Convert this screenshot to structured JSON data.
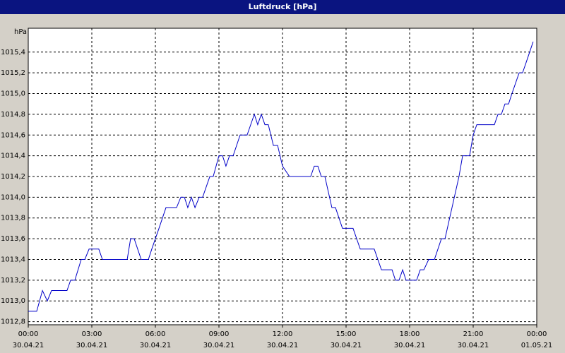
{
  "chart_data": {
    "type": "line",
    "title": "Luftdruck [hPa]",
    "y_label": "hPa",
    "xlim": [
      0,
      24
    ],
    "xticks": [
      {
        "value": 0,
        "label": "00:00"
      },
      {
        "value": 3,
        "label": "03:00"
      },
      {
        "value": 6,
        "label": "06:00"
      },
      {
        "value": 9,
        "label": "09:00"
      },
      {
        "value": 12,
        "label": "12:00"
      },
      {
        "value": 15,
        "label": "15:00"
      },
      {
        "value": 18,
        "label": "18:00"
      },
      {
        "value": 21,
        "label": "21:00"
      },
      {
        "value": 24,
        "label": "00:00"
      }
    ],
    "xtick_dates": [
      "30.04.21",
      "30.04.21",
      "30.04.21",
      "30.04.21",
      "30.04.21",
      "30.04.21",
      "30.04.21",
      "30.04.21",
      "01.05.21"
    ],
    "ylim": [
      1012.77,
      1015.63
    ],
    "yticks": [
      {
        "value": 1012.8,
        "label": "1012,8"
      },
      {
        "value": 1013.0,
        "label": "1013,0"
      },
      {
        "value": 1013.2,
        "label": "1013,2"
      },
      {
        "value": 1013.4,
        "label": "1013,4"
      },
      {
        "value": 1013.6,
        "label": "1013,6"
      },
      {
        "value": 1013.8,
        "label": "1013,8"
      },
      {
        "value": 1014.0,
        "label": "1014,0"
      },
      {
        "value": 1014.2,
        "label": "1014,2"
      },
      {
        "value": 1014.4,
        "label": "1014,4"
      },
      {
        "value": 1014.6,
        "label": "1014,6"
      },
      {
        "value": 1014.8,
        "label": "1014,8"
      },
      {
        "value": 1015.0,
        "label": "1015,0"
      },
      {
        "value": 1015.2,
        "label": "1015,2"
      },
      {
        "value": 1015.4,
        "label": "1015,4"
      }
    ],
    "grid": true,
    "color": "#0000c8",
    "x": [
      0,
      0.4,
      0.67,
      0.9,
      1.1,
      1.83,
      2,
      2.2,
      2.5,
      2.67,
      2.87,
      3.33,
      3.5,
      4.67,
      4.83,
      5,
      5.33,
      5.67,
      5.83,
      6.17,
      6.5,
      7,
      7.2,
      7.37,
      7.53,
      7.7,
      7.87,
      8.07,
      8.23,
      8.57,
      8.73,
      9,
      9.17,
      9.33,
      9.5,
      9.67,
      10,
      10.33,
      10.67,
      10.83,
      11,
      11.17,
      11.33,
      11.57,
      11.77,
      12,
      12.33,
      13.33,
      13.5,
      13.67,
      13.83,
      14,
      14.33,
      14.5,
      14.83,
      15.33,
      15.67,
      16.33,
      16.67,
      17.17,
      17.33,
      17.5,
      17.67,
      17.83,
      18.33,
      18.5,
      18.67,
      18.9,
      19.17,
      19.5,
      19.67,
      20,
      20.33,
      20.5,
      20.83,
      21,
      21.17,
      22,
      22.17,
      22.33,
      22.5,
      22.67,
      22.83,
      23.17,
      23.33,
      23.5,
      23.83
    ],
    "values": [
      1012.9,
      1012.9,
      1013.1,
      1013.0,
      1013.1,
      1013.1,
      1013.2,
      1013.2,
      1013.4,
      1013.4,
      1013.5,
      1013.5,
      1013.4,
      1013.4,
      1013.6,
      1013.6,
      1013.4,
      1013.4,
      1013.5,
      1013.7,
      1013.9,
      1013.9,
      1014.0,
      1014.0,
      1013.9,
      1014.0,
      1013.9,
      1014.0,
      1014.0,
      1014.2,
      1014.2,
      1014.4,
      1014.4,
      1014.3,
      1014.4,
      1014.4,
      1014.6,
      1014.6,
      1014.8,
      1014.7,
      1014.8,
      1014.7,
      1014.7,
      1014.5,
      1014.5,
      1014.3,
      1014.2,
      1014.2,
      1014.3,
      1014.3,
      1014.2,
      1014.2,
      1013.9,
      1013.9,
      1013.7,
      1013.7,
      1013.5,
      1013.5,
      1013.3,
      1013.3,
      1013.2,
      1013.2,
      1013.3,
      1013.2,
      1013.2,
      1013.3,
      1013.3,
      1013.4,
      1013.4,
      1013.6,
      1013.6,
      1013.9,
      1014.2,
      1014.4,
      1014.4,
      1014.6,
      1014.7,
      1014.7,
      1014.8,
      1014.8,
      1014.9,
      1014.9,
      1015.0,
      1015.2,
      1015.2,
      1015.3,
      1015.5
    ]
  }
}
